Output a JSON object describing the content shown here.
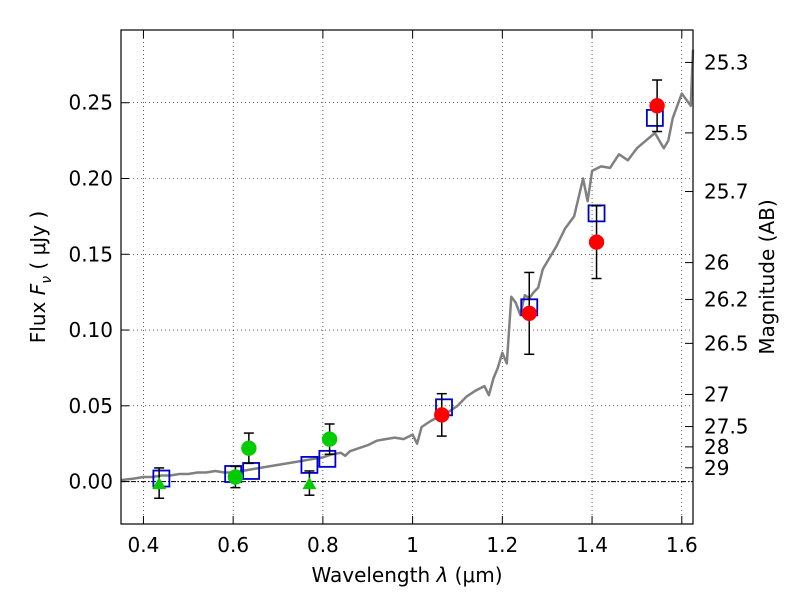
{
  "chart_data": {
    "type": "scatter",
    "xlabel": {
      "pre": "Wavelength ",
      "sym": "λ",
      "unit": " (μm)"
    },
    "ylabel": {
      "pre": "Flux ",
      "sym": "F",
      "sub": "ν",
      "mid": " ( ",
      "unit": "μJy",
      "post": " )"
    },
    "y2label": "Magnitude (AB)",
    "xlim": [
      0.35,
      1.625
    ],
    "ylim": [
      -0.028,
      0.298
    ],
    "grid": true,
    "x_ticks": [
      0.4,
      0.6,
      0.8,
      1.0,
      1.2,
      1.4,
      1.6
    ],
    "x_tick_labels": [
      "0.4",
      "0.6",
      "0.8",
      "1",
      "1.2",
      "1.4",
      "1.6"
    ],
    "y_ticks": [
      0.0,
      0.05,
      0.1,
      0.15,
      0.2,
      0.25
    ],
    "y_tick_labels": [
      "0.00",
      "0.05",
      "0.10",
      "0.15",
      "0.20",
      "0.25"
    ],
    "right_axis_ticks": [
      {
        "flux": 0.2766,
        "label": "25.3"
      },
      {
        "flux": 0.2301,
        "label": "25.5"
      },
      {
        "flux": 0.1914,
        "label": "25.7"
      },
      {
        "flux": 0.1445,
        "label": "26"
      },
      {
        "flux": 0.1202,
        "label": "26.2"
      },
      {
        "flux": 0.0912,
        "label": "26.5"
      },
      {
        "flux": 0.0575,
        "label": "27"
      },
      {
        "flux": 0.0363,
        "label": "27.5"
      },
      {
        "flux": 0.0229,
        "label": "28"
      },
      {
        "flux": 0.0091,
        "label": "29"
      }
    ],
    "series": [
      {
        "kind": "model-spectrum",
        "color": "#808080",
        "x": [
          0.35,
          0.38,
          0.4,
          0.42,
          0.44,
          0.46,
          0.48,
          0.5,
          0.52,
          0.54,
          0.56,
          0.58,
          0.6,
          0.62,
          0.64,
          0.66,
          0.68,
          0.7,
          0.72,
          0.74,
          0.76,
          0.78,
          0.8,
          0.82,
          0.84,
          0.85,
          0.86,
          0.88,
          0.9,
          0.92,
          0.94,
          0.96,
          0.98,
          1.0,
          1.01,
          1.02,
          1.04,
          1.06,
          1.08,
          1.1,
          1.12,
          1.14,
          1.16,
          1.17,
          1.18,
          1.19,
          1.2,
          1.21,
          1.22,
          1.23,
          1.24,
          1.25,
          1.26,
          1.27,
          1.28,
          1.29,
          1.3,
          1.32,
          1.34,
          1.36,
          1.38,
          1.39,
          1.4,
          1.42,
          1.44,
          1.46,
          1.48,
          1.5,
          1.52,
          1.54,
          1.56,
          1.57,
          1.58,
          1.6,
          1.62,
          1.625
        ],
        "y": [
          0.001,
          0.002,
          0.003,
          0.003,
          0.004,
          0.004,
          0.005,
          0.005,
          0.006,
          0.006,
          0.007,
          0.006,
          0.006,
          0.007,
          0.008,
          0.009,
          0.01,
          0.011,
          0.012,
          0.013,
          0.014,
          0.015,
          0.016,
          0.018,
          0.019,
          0.017,
          0.02,
          0.022,
          0.024,
          0.027,
          0.028,
          0.029,
          0.028,
          0.031,
          0.025,
          0.036,
          0.04,
          0.043,
          0.046,
          0.05,
          0.056,
          0.06,
          0.063,
          0.057,
          0.068,
          0.075,
          0.085,
          0.078,
          0.122,
          0.118,
          0.11,
          0.123,
          0.121,
          0.125,
          0.128,
          0.14,
          0.145,
          0.155,
          0.167,
          0.175,
          0.2,
          0.185,
          0.205,
          0.208,
          0.207,
          0.216,
          0.212,
          0.22,
          0.225,
          0.23,
          0.22,
          0.225,
          0.24,
          0.256,
          0.248,
          0.285
        ]
      },
      {
        "kind": "model-photometry",
        "marker": "open-square",
        "color": "#0000cc",
        "x": [
          0.44,
          0.6,
          0.64,
          0.77,
          0.81,
          1.07,
          1.26,
          1.41,
          1.54
        ],
        "y": [
          0.002,
          0.005,
          0.007,
          0.011,
          0.015,
          0.049,
          0.115,
          0.177,
          0.24
        ]
      },
      {
        "kind": "observed-nir",
        "marker": "filled-circle",
        "color": "#ff0000",
        "x": [
          1.065,
          1.26,
          1.41,
          1.545
        ],
        "y": [
          0.044,
          0.111,
          0.158,
          0.248
        ],
        "err": [
          0.014,
          0.027,
          0.024,
          0.017
        ]
      },
      {
        "kind": "observed-optical",
        "marker": "filled-circle",
        "color": "#00cc00",
        "x": [
          0.605,
          0.635,
          0.815
        ],
        "y": [
          0.003,
          0.022,
          0.028
        ],
        "err": [
          0.007,
          0.01,
          0.01
        ]
      },
      {
        "kind": "upper-limit",
        "marker": "filled-triangle",
        "color": "#00cc00",
        "x": [
          0.435,
          0.77
        ],
        "y": [
          -0.001,
          -0.001
        ],
        "err": [
          0.01,
          0.008
        ]
      }
    ]
  }
}
